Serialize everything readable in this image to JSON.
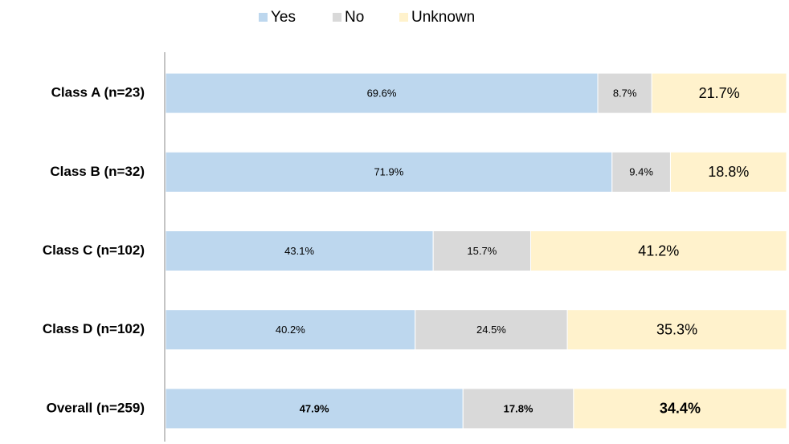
{
  "chart_data": {
    "type": "stacked-bar-horizontal",
    "categories": [
      "Class A (n=23)",
      "Class B (n=32)",
      "Class C (n=102)",
      "Class D (n=102)",
      "Overall (n=259)"
    ],
    "series": [
      {
        "name": "Yes",
        "color": "#bdd7ee",
        "values": [
          69.6,
          71.9,
          43.1,
          40.2,
          47.9
        ],
        "value_labels": [
          "69.6%",
          "71.9%",
          "43.1%",
          "40.2%",
          "47.9%"
        ]
      },
      {
        "name": "No",
        "color": "#d9d9d9",
        "values": [
          8.7,
          9.4,
          15.7,
          24.5,
          17.8
        ],
        "value_labels": [
          "8.7%",
          "9.4%",
          "15.7%",
          "24.5%",
          "17.8%"
        ]
      },
      {
        "name": "Unknown",
        "color": "#fff2cc",
        "values": [
          21.7,
          18.8,
          41.2,
          35.3,
          34.4
        ],
        "value_labels": [
          "21.7%",
          "18.8%",
          "41.2%",
          "35.3%",
          "34.4%"
        ]
      }
    ],
    "xlim": [
      0,
      100
    ],
    "legend": "top"
  }
}
